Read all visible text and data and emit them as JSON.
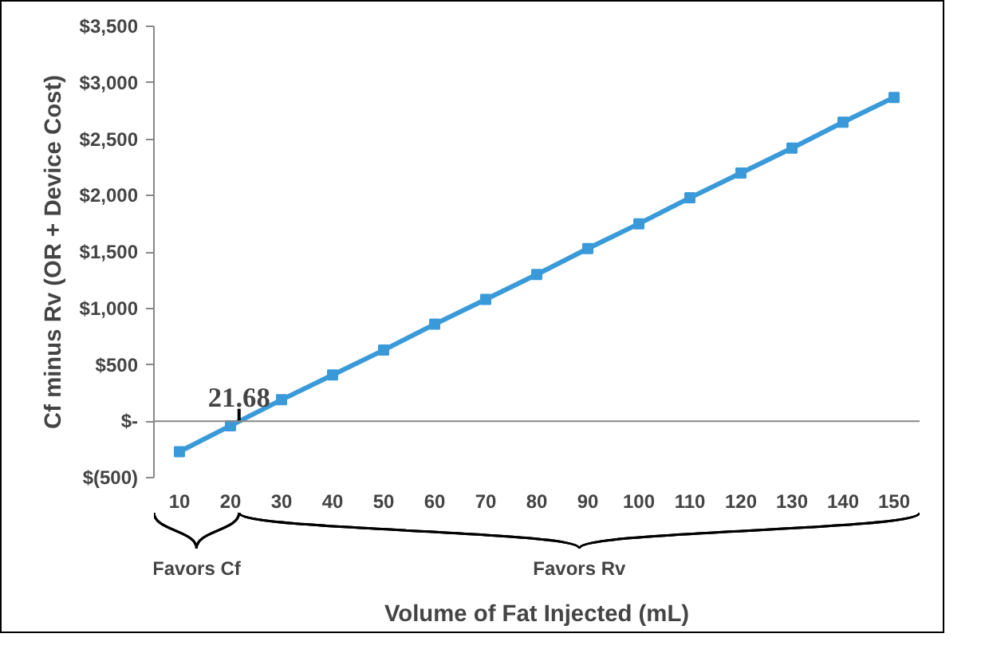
{
  "chart_data": {
    "type": "line",
    "xlabel": "Volume of Fat Injected (mL)",
    "ylabel": "Cf minus Rv (OR + Device Cost)",
    "x": [
      10,
      20,
      30,
      40,
      50,
      60,
      70,
      80,
      90,
      100,
      110,
      120,
      130,
      140,
      150
    ],
    "series": [
      {
        "color": "#3a9ad9",
        "values": [
          -270,
          -40,
          190,
          410,
          630,
          860,
          1080,
          1300,
          1530,
          1750,
          1980,
          2200,
          2420,
          2650,
          2870
        ]
      }
    ],
    "xlim": [
      5,
      155
    ],
    "xticks": [
      10,
      20,
      30,
      40,
      50,
      60,
      70,
      80,
      90,
      100,
      110,
      120,
      130,
      140,
      150
    ],
    "ylim": [
      -500,
      3500
    ],
    "yticks": [
      {
        "value": -500,
        "label": "$(500)"
      },
      {
        "value": 0,
        "label": "$-"
      },
      {
        "value": 500,
        "label": "$500"
      },
      {
        "value": 1000,
        "label": "$1,000"
      },
      {
        "value": 1500,
        "label": "$1,500"
      },
      {
        "value": 2000,
        "label": "$2,000"
      },
      {
        "value": 2500,
        "label": "$2,500"
      },
      {
        "value": 3000,
        "label": "$3,000"
      },
      {
        "value": 3500,
        "label": "$3,500"
      }
    ],
    "ref_lines": [
      {
        "axis": "y",
        "value": 0,
        "color": "#888888"
      }
    ],
    "annotations": [
      {
        "text": "21.68",
        "x": 21.68,
        "y": 0
      },
      "Favors Cf",
      "Favors Rv"
    ],
    "marker": "square",
    "line_style": "solid"
  }
}
